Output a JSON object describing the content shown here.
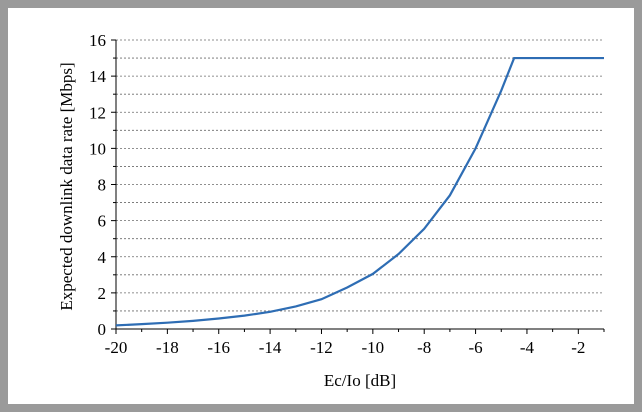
{
  "chart_data": {
    "type": "line",
    "title": "",
    "xlabel": "Ec/Io [dB]",
    "ylabel": "Expected downlink data rate [Mbps]",
    "xlim": [
      -20,
      -1
    ],
    "ylim": [
      0,
      16
    ],
    "x_ticks": [
      -20,
      -18,
      -16,
      -14,
      -12,
      -10,
      -8,
      -6,
      -4,
      -2
    ],
    "y_ticks": [
      0,
      2,
      4,
      6,
      8,
      10,
      12,
      14,
      16
    ],
    "y_ticks_display": [
      "0",
      "2",
      "4",
      "6",
      "8",
      "10",
      "12",
      "14",
      "16"
    ],
    "x_ticks_display": [
      "-20",
      "-18",
      "-16",
      "-14",
      "-12",
      "-10",
      "-8",
      "-6",
      "-4",
      "-2"
    ],
    "grid": "horizontal dashed",
    "legend": "none",
    "line_color": "#2e6db4",
    "series": [
      {
        "x": [
          -20,
          -19,
          -18,
          -17,
          -16,
          -15,
          -14,
          -13,
          -12,
          -11,
          -10,
          -9,
          -8,
          -7,
          -6,
          -5,
          -4.5,
          -4,
          -3,
          -2,
          -1
        ],
        "y": [
          0.2,
          0.27,
          0.35,
          0.45,
          0.58,
          0.74,
          0.95,
          1.25,
          1.65,
          2.3,
          3.05,
          4.15,
          5.55,
          7.4,
          10.0,
          13.2,
          15.0,
          15.0,
          15.0,
          15.0,
          15.0
        ]
      }
    ]
  }
}
